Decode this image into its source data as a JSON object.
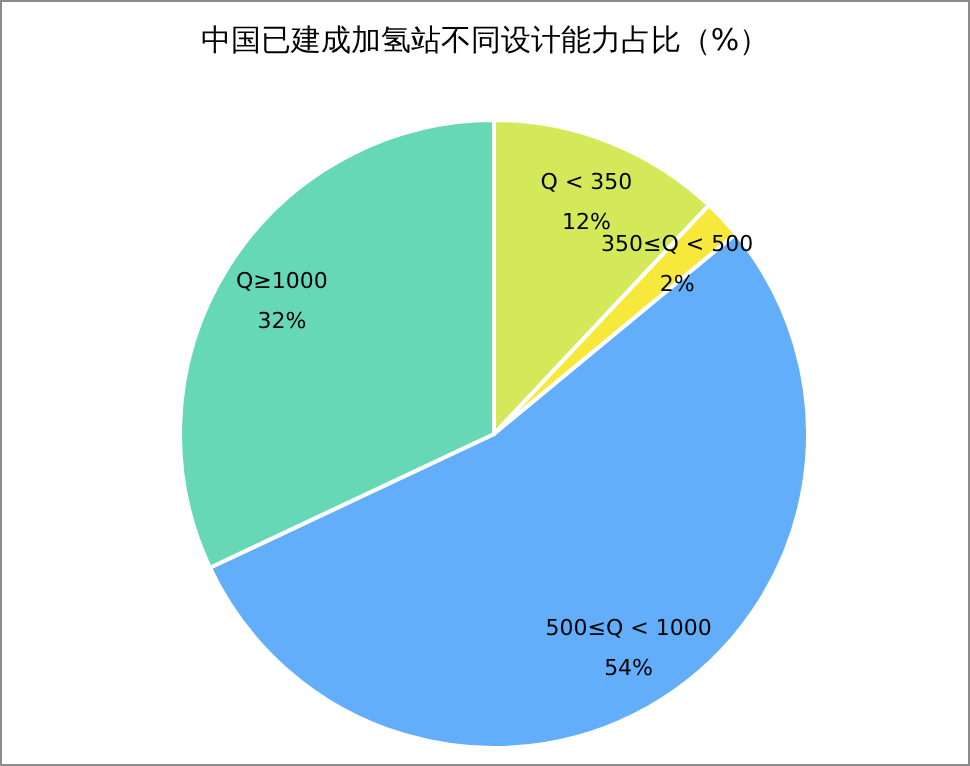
{
  "chart_data": {
    "type": "pie",
    "title": "中国已建成加氢站不同设计能力占比（%）",
    "categories": [
      "Q < 350",
      "350≤Q < 500",
      "500≤Q < 1000",
      "Q≥1000"
    ],
    "values": [
      12,
      2,
      54,
      32
    ],
    "colors": [
      "#d4e95a",
      "#f7e83c",
      "#62aefa",
      "#66d8b5"
    ],
    "value_labels": [
      "12%",
      "2%",
      "54%",
      "32%"
    ],
    "legend": false
  }
}
